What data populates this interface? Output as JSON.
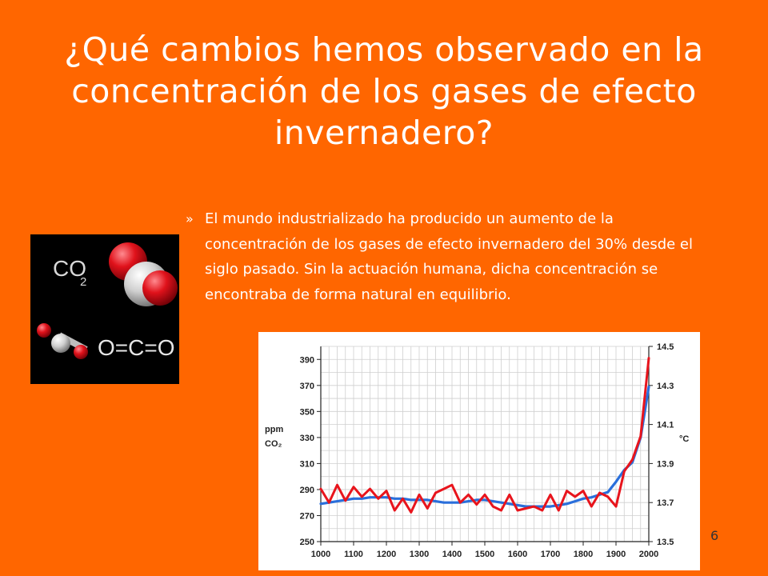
{
  "slide": {
    "title_lines": [
      "¿Qué cambios hemos observado en la",
      "concentración de los gases de efecto",
      "invernadero?"
    ],
    "bullet_marker": "»",
    "bullet_text": "El mundo industrializado ha producido un aumento de la concentración de los gases de efecto invernadero del 30% desde el siglo pasado. Sin la actuación humana, dicha concentración se encontraba de forma natural en equilibrio.",
    "slide_number": "6",
    "background_color": "#ff6600"
  },
  "molecule_image": {
    "formula_label": "CO",
    "formula_subscript": "2",
    "structural_formula": "O=C=O",
    "oxygen_color": "#e0121b",
    "carbon_color": "#cfcfcf"
  },
  "chart_data": {
    "type": "line",
    "x": [
      1000,
      1025,
      1050,
      1075,
      1100,
      1125,
      1150,
      1175,
      1200,
      1225,
      1250,
      1275,
      1300,
      1325,
      1350,
      1375,
      1400,
      1425,
      1450,
      1475,
      1500,
      1525,
      1550,
      1575,
      1600,
      1625,
      1650,
      1675,
      1700,
      1725,
      1750,
      1775,
      1800,
      1825,
      1850,
      1875,
      1900,
      1925,
      1950,
      1975,
      2000
    ],
    "x_ticks": [
      1000,
      1100,
      1200,
      1300,
      1400,
      1500,
      1600,
      1700,
      1800,
      1900,
      2000
    ],
    "x_tick_labels": [
      "1000",
      "1100",
      "1200",
      "1300",
      "1400",
      "1500",
      "1600",
      "1700",
      "1800",
      "1900",
      "2000"
    ],
    "xlim": [
      1000,
      2000
    ],
    "series": [
      {
        "axis": "left",
        "color": "#2a6fdb",
        "values": [
          279,
          280,
          281,
          282,
          283,
          283,
          284,
          284,
          284,
          283,
          283,
          282,
          282,
          282,
          281,
          280,
          280,
          280,
          281,
          282,
          282,
          281,
          280,
          279,
          278,
          277,
          277,
          277,
          277,
          278,
          279,
          281,
          283,
          284,
          286,
          288,
          296,
          305,
          311,
          330,
          369
        ]
      },
      {
        "axis": "right",
        "color": "#e8141c",
        "values": [
          13.77,
          13.7,
          13.79,
          13.71,
          13.78,
          13.73,
          13.77,
          13.72,
          13.76,
          13.66,
          13.72,
          13.65,
          13.74,
          13.67,
          13.75,
          13.77,
          13.79,
          13.7,
          13.74,
          13.69,
          13.74,
          13.68,
          13.66,
          13.74,
          13.66,
          13.67,
          13.68,
          13.66,
          13.74,
          13.66,
          13.76,
          13.73,
          13.76,
          13.68,
          13.75,
          13.73,
          13.68,
          13.86,
          13.92,
          14.04,
          14.44
        ]
      }
    ],
    "left_axis": {
      "label_lines": [
        "ppm",
        "CO₂"
      ],
      "ylim": [
        250,
        400
      ],
      "ticks": [
        250,
        270,
        290,
        310,
        330,
        350,
        370,
        390
      ],
      "tick_labels": [
        "250",
        "270",
        "290",
        "310",
        "330",
        "350",
        "370",
        "390"
      ]
    },
    "right_axis": {
      "label": "°C",
      "ylim": [
        13.5,
        14.5
      ],
      "ticks": [
        13.5,
        13.7,
        13.9,
        14.1,
        14.3,
        14.5
      ],
      "tick_labels": [
        "13.5",
        "13.7",
        "13.9",
        "14.1",
        "14.3",
        "14.5"
      ]
    },
    "grid": true
  }
}
